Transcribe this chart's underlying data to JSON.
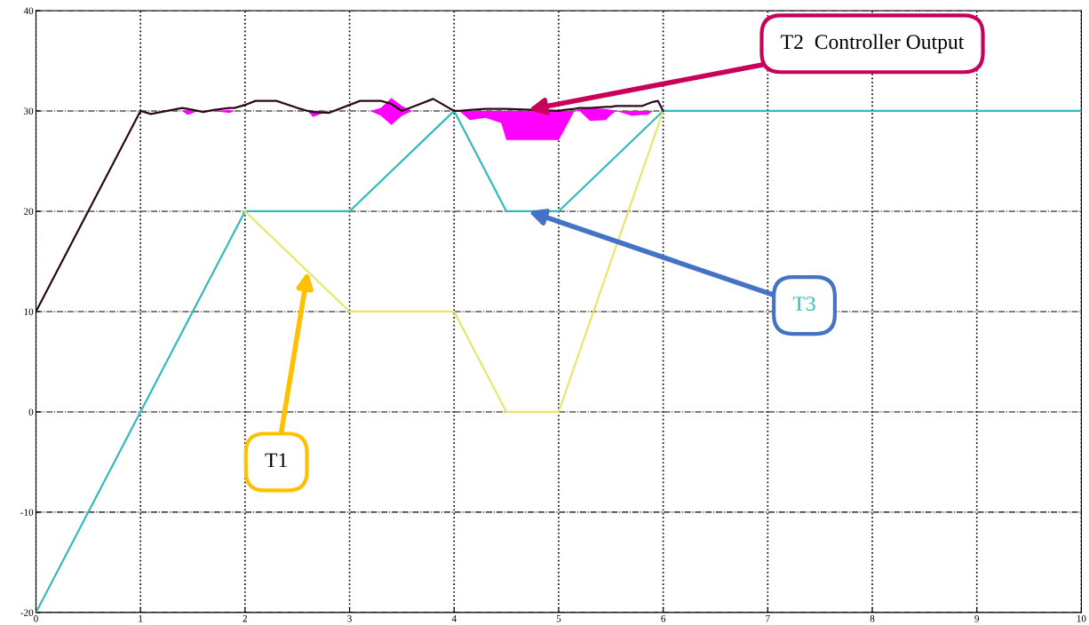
{
  "chart_data": {
    "type": "line",
    "xlim": [
      0,
      10
    ],
    "ylim": [
      -20,
      40
    ],
    "xticks": [
      0,
      1,
      2,
      3,
      4,
      5,
      6,
      7,
      8,
      9,
      10
    ],
    "yticks": [
      -20,
      -10,
      0,
      10,
      20,
      30,
      40
    ],
    "grid": true,
    "legend": false,
    "series": [
      {
        "name": "T3",
        "color": "#33bbbb",
        "x": [
          0,
          2,
          3,
          4,
          4.5,
          5,
          6,
          10
        ],
        "values": [
          -20,
          20,
          20,
          30,
          20,
          20,
          30,
          30
        ]
      },
      {
        "name": "T1",
        "color": "#e6e66e",
        "x": [
          2,
          3,
          4,
          4.5,
          5,
          6
        ],
        "values": [
          20,
          10,
          10,
          0,
          0,
          30
        ]
      },
      {
        "name": "T2  Controller Output",
        "color": "#2a0a1a",
        "x": [
          0,
          1,
          1.1,
          1.3,
          1.4,
          1.45,
          1.55,
          1.6,
          1.7,
          1.85,
          1.9,
          2.0,
          2.1,
          2.3,
          2.5,
          2.6,
          2.65,
          2.8,
          3.1,
          3.2,
          3.3,
          3.4,
          3.5,
          3.6,
          3.8,
          4,
          4.05,
          4.15,
          4.3,
          4.45,
          4.5,
          5.0,
          5.05,
          5.15,
          5.2,
          5.3,
          5.45,
          5.5,
          5.55,
          5.7,
          5.8,
          5.85,
          5.9,
          5.95,
          6
        ],
        "values": [
          10,
          30,
          29.7,
          30.1,
          30.3,
          30.2,
          30,
          29.9,
          30.1,
          30.3,
          30.3,
          30.6,
          31,
          31,
          30.3,
          30,
          29.9,
          29.8,
          31,
          31,
          31,
          30.7,
          30,
          30.4,
          31.2,
          30,
          30,
          30.1,
          30.2,
          30.2,
          30.2,
          30,
          30.1,
          30.2,
          30.3,
          30.3,
          30.4,
          30.4,
          30.5,
          30.5,
          30.5,
          30.7,
          30.9,
          31,
          30
        ],
        "upper": [
          null,
          null,
          null,
          30,
          30,
          30.1,
          30,
          30,
          30,
          30.1,
          30,
          30,
          30,
          30,
          30,
          30,
          30,
          30,
          30,
          30,
          30.3,
          31.3,
          30.5,
          30,
          30,
          30,
          30,
          30,
          30,
          30,
          30,
          30,
          30,
          30,
          30.2,
          30.3,
          30.2,
          30.1,
          30,
          30,
          30,
          30,
          30,
          null,
          null
        ],
        "lower": [
          null,
          null,
          null,
          30,
          30,
          29.6,
          30,
          30,
          30,
          29.8,
          30,
          30,
          30,
          30,
          30,
          30,
          29.4,
          30,
          30,
          30,
          29.5,
          28.6,
          29.5,
          30,
          30,
          30,
          30,
          29.1,
          29.3,
          28.8,
          27.1,
          27.1,
          28.0,
          30,
          30,
          29.0,
          29.1,
          29.6,
          30,
          29.5,
          29.6,
          29.6,
          30,
          null,
          null
        ]
      }
    ]
  }
}
